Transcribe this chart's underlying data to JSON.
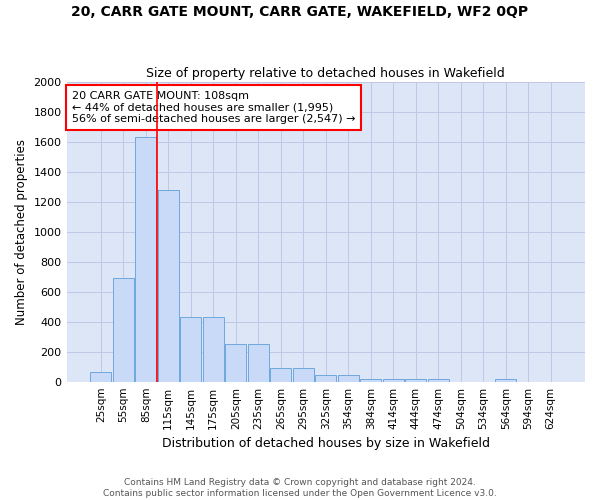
{
  "title": "20, CARR GATE MOUNT, CARR GATE, WAKEFIELD, WF2 0QP",
  "subtitle": "Size of property relative to detached houses in Wakefield",
  "xlabel": "Distribution of detached houses by size in Wakefield",
  "ylabel": "Number of detached properties",
  "bar_values": [
    65,
    690,
    1630,
    1280,
    430,
    430,
    250,
    250,
    90,
    90,
    45,
    45,
    20,
    20,
    15,
    15,
    0,
    0,
    20,
    0,
    0
  ],
  "categories": [
    "25sqm",
    "55sqm",
    "85sqm",
    "115sqm",
    "145sqm",
    "175sqm",
    "205sqm",
    "235sqm",
    "265sqm",
    "295sqm",
    "325sqm",
    "354sqm",
    "384sqm",
    "414sqm",
    "444sqm",
    "474sqm",
    "504sqm",
    "534sqm",
    "564sqm",
    "594sqm",
    "624sqm"
  ],
  "bar_color": "#c9daf8",
  "bar_edge_color": "#6fa8dc",
  "grid_color": "#c0c8e8",
  "background_color": "#dce6f7",
  "red_line_index": 2.5,
  "annotation_text": "20 CARR GATE MOUNT: 108sqm\n← 44% of detached houses are smaller (1,995)\n56% of semi-detached houses are larger (2,547) →",
  "annotation_box_color": "white",
  "annotation_box_edge": "red",
  "ylim": [
    0,
    2000
  ],
  "yticks": [
    0,
    200,
    400,
    600,
    800,
    1000,
    1200,
    1400,
    1600,
    1800,
    2000
  ],
  "footer_text": "Contains HM Land Registry data © Crown copyright and database right 2024.\nContains public sector information licensed under the Open Government Licence v3.0.",
  "fig_width": 6.0,
  "fig_height": 5.0
}
